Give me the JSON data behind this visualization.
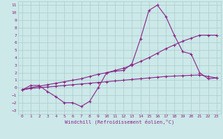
{
  "background_color": "#cce8e8",
  "grid_color": "#aacccc",
  "line_color": "#882288",
  "xlabel": "Windchill (Refroidissement éolien,°C)",
  "x_ticks": [
    0,
    1,
    2,
    3,
    4,
    5,
    6,
    7,
    8,
    9,
    10,
    11,
    12,
    13,
    14,
    15,
    16,
    17,
    18,
    19,
    20,
    21,
    22,
    23
  ],
  "y_ticks": [
    -3,
    -2,
    -1,
    0,
    1,
    2,
    3,
    4,
    5,
    6,
    7,
    8,
    9,
    10,
    11
  ],
  "xlim": [
    -0.5,
    23.5
  ],
  "ylim": [
    -3.5,
    11.5
  ],
  "line1_x": [
    0,
    1,
    2,
    3,
    4,
    5,
    6,
    7,
    8,
    9,
    10,
    11,
    12,
    13,
    14,
    15,
    16,
    17,
    18,
    19,
    20,
    21,
    22,
    23
  ],
  "line1_y": [
    -0.3,
    0.3,
    0.3,
    -0.5,
    -1.2,
    -2.0,
    -2.0,
    -2.5,
    -1.8,
    0.0,
    2.0,
    2.2,
    2.3,
    3.2,
    6.5,
    10.3,
    11.0,
    9.5,
    7.0,
    4.8,
    4.5,
    2.0,
    1.2,
    1.3
  ],
  "line2_x": [
    0,
    1,
    2,
    3,
    4,
    5,
    6,
    7,
    8,
    9,
    10,
    11,
    12,
    13,
    14,
    15,
    16,
    17,
    18,
    19,
    20,
    21,
    22,
    23
  ],
  "line2_y": [
    -0.3,
    0.0,
    0.2,
    0.4,
    0.6,
    0.8,
    1.0,
    1.2,
    1.5,
    1.8,
    2.0,
    2.3,
    2.6,
    3.0,
    3.5,
    4.0,
    4.6,
    5.2,
    5.7,
    6.2,
    6.6,
    7.0,
    7.0,
    7.0
  ],
  "line3_x": [
    0,
    1,
    2,
    3,
    4,
    5,
    6,
    7,
    8,
    9,
    10,
    11,
    12,
    13,
    14,
    15,
    16,
    17,
    18,
    19,
    20,
    21,
    22,
    23
  ],
  "line3_y": [
    -0.3,
    -0.1,
    0.0,
    0.1,
    0.2,
    0.3,
    0.4,
    0.5,
    0.6,
    0.7,
    0.8,
    0.9,
    1.0,
    1.1,
    1.2,
    1.3,
    1.4,
    1.5,
    1.55,
    1.6,
    1.65,
    1.7,
    1.5,
    1.3
  ]
}
